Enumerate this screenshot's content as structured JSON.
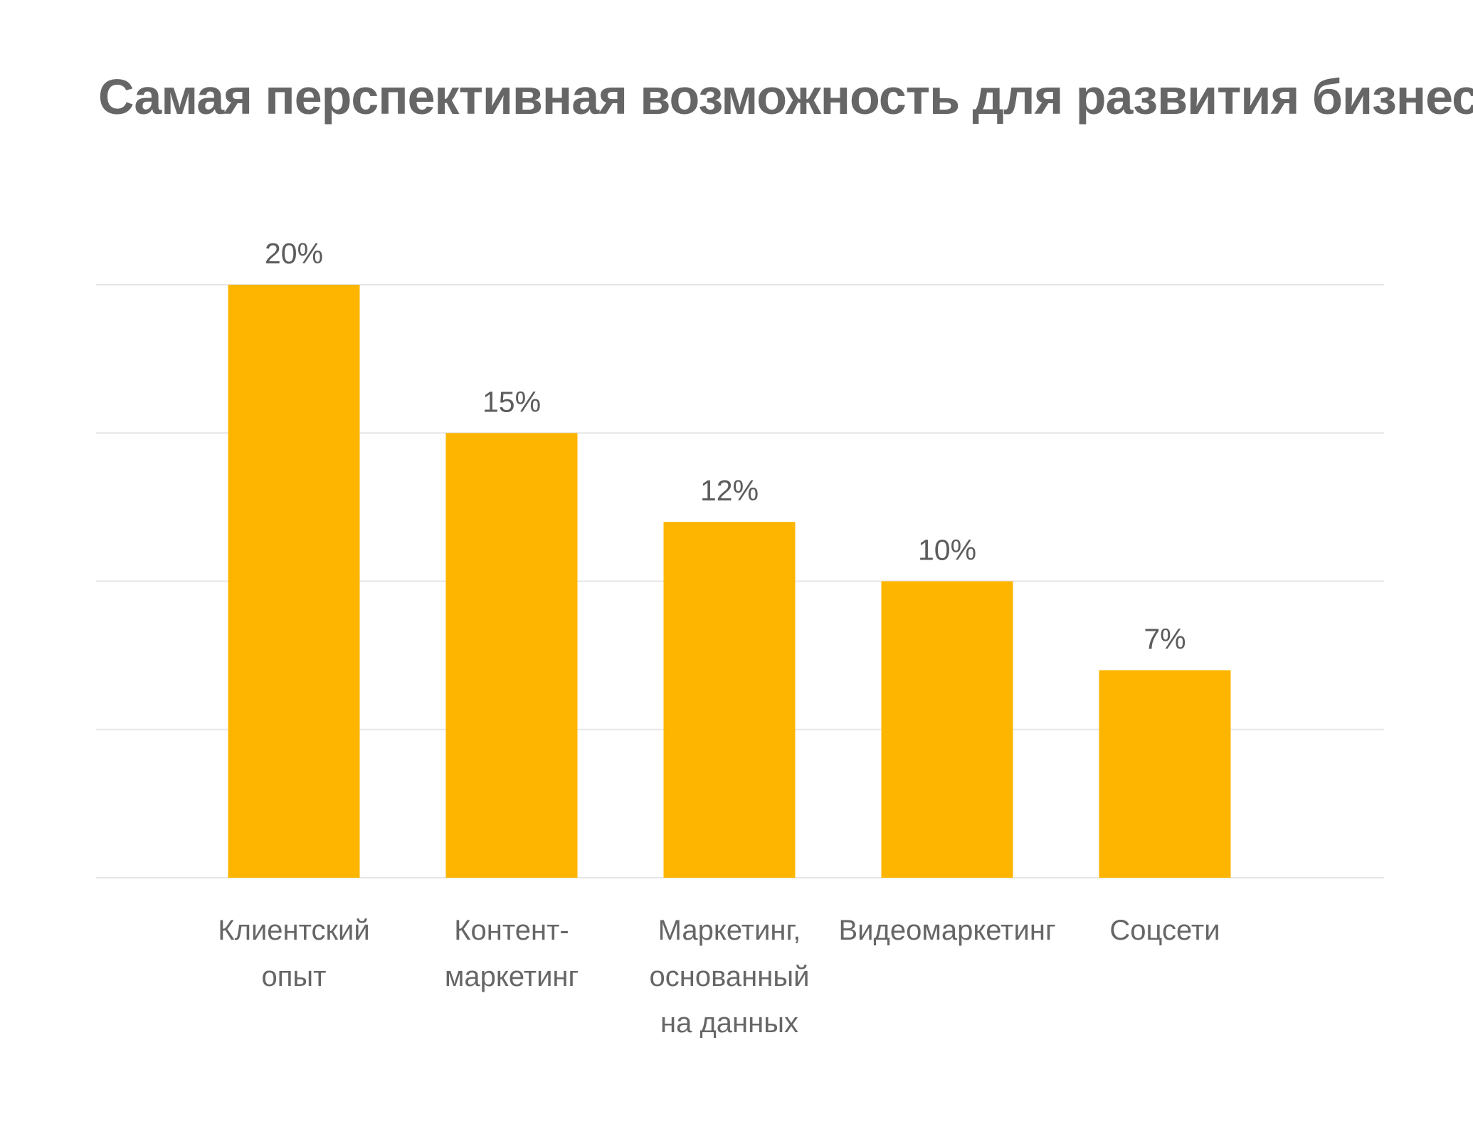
{
  "chart_data": {
    "type": "bar",
    "title": "Самая перспективная возможность для развития бизнеса",
    "categories": [
      [
        "Клиентский",
        "опыт"
      ],
      [
        "Контент-",
        "маркетинг"
      ],
      [
        "Маркетинг,",
        "основанный",
        "на данных"
      ],
      [
        "Видеомаркетинг"
      ],
      [
        "Соцсети"
      ]
    ],
    "values": [
      20,
      15,
      12,
      10,
      7
    ],
    "value_labels": [
      "20%",
      "15%",
      "12%",
      "10%",
      "7%"
    ],
    "ylim": [
      0,
      20
    ],
    "gridlines": [
      0,
      5,
      10,
      15,
      20
    ],
    "grid": true,
    "bar_color": "#fdb500"
  }
}
